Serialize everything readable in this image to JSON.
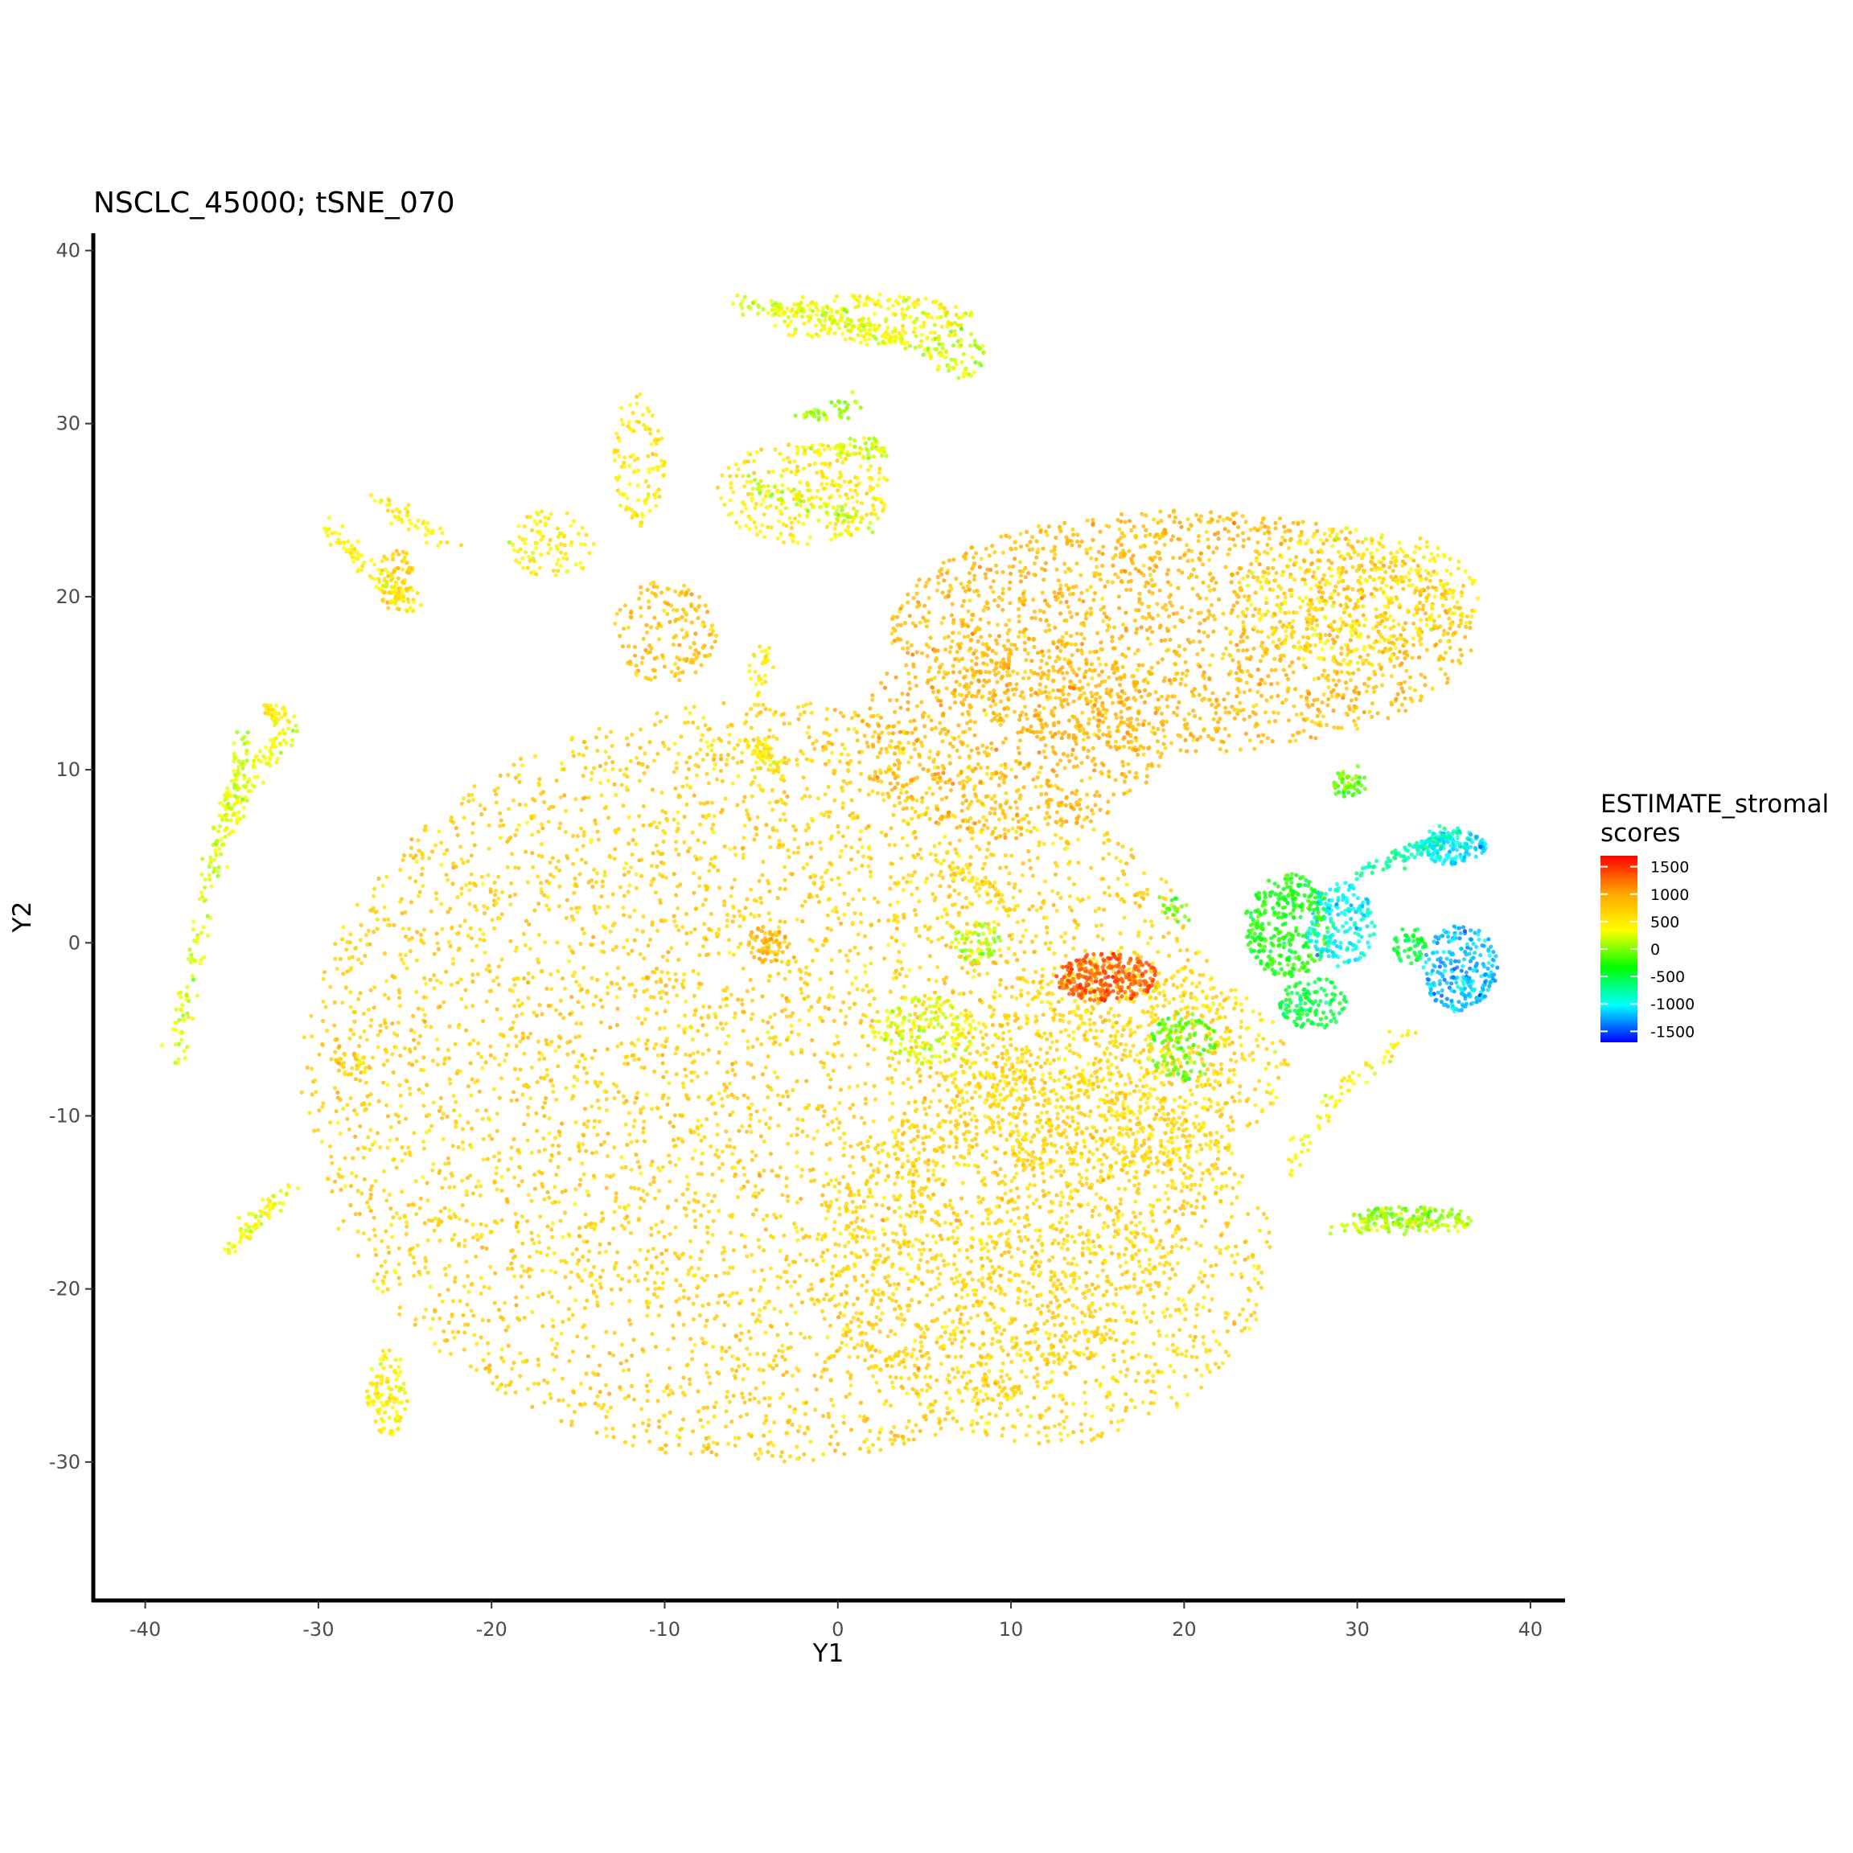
{
  "chart_data": {
    "type": "scatter",
    "title": "NSCLC_45000; tSNE_070",
    "xlabel": "Y1",
    "ylabel": "Y2",
    "xlim": [
      -43,
      42
    ],
    "ylim": [
      -38,
      41
    ],
    "xticks": [
      -40,
      -30,
      -20,
      -10,
      0,
      10,
      20,
      30,
      40
    ],
    "yticks": [
      -30,
      -20,
      -10,
      0,
      10,
      20,
      30,
      40
    ],
    "grid": false,
    "color_variable": "ESTIMATE_stromal scores",
    "legend": {
      "title_lines": [
        "ESTIMATE_stromal",
        "scores"
      ],
      "position": "right",
      "scale": [
        "#0000FF",
        "#00FFFF",
        "#00FF00",
        "#FFFF00",
        "#FFA500",
        "#FF0000"
      ],
      "range": [
        -1700,
        1700
      ],
      "ticks": [
        1500,
        1000,
        500,
        0,
        -500,
        -1000,
        -1500
      ]
    },
    "clusters": [
      {
        "cx": -4,
        "cy": -8,
        "rx": 27,
        "ry": 22,
        "n": 5200,
        "score": 700
      },
      {
        "cx": 12,
        "cy": -18,
        "rx": 13,
        "ry": 11,
        "n": 1400,
        "score": 650
      },
      {
        "cx": 16,
        "cy": -7,
        "rx": 10,
        "ry": 6,
        "n": 700,
        "score": 600
      },
      {
        "cx": 20,
        "cy": 18,
        "rx": 17,
        "ry": 7,
        "n": 1800,
        "score": 850
      },
      {
        "cx": 30,
        "cy": 20,
        "rx": 7,
        "ry": 4,
        "n": 400,
        "score": 500
      },
      {
        "cx": 10,
        "cy": 12,
        "rx": 9,
        "ry": 6,
        "n": 700,
        "score": 900
      },
      {
        "cx": 2,
        "cy": 36,
        "rx": 6,
        "ry": 1.5,
        "n": 220,
        "score": 400
      },
      {
        "cx": 7,
        "cy": 34,
        "rx": 1.5,
        "ry": 1.5,
        "n": 40,
        "score": 100
      },
      {
        "cx": -2,
        "cy": 26,
        "rx": 5,
        "ry": 3,
        "n": 260,
        "score": 500
      },
      {
        "cx": -11.5,
        "cy": 28,
        "rx": 1.5,
        "ry": 4,
        "n": 110,
        "score": 500
      },
      {
        "cx": -16.5,
        "cy": 23,
        "rx": 2.5,
        "ry": 2,
        "n": 90,
        "score": 450
      },
      {
        "cx": -25.5,
        "cy": 21,
        "rx": 1,
        "ry": 2,
        "n": 70,
        "score": 700
      },
      {
        "cx": -10,
        "cy": 18,
        "rx": 3,
        "ry": 3,
        "n": 160,
        "score": 800
      },
      {
        "cx": -4,
        "cy": 0,
        "rx": 1.2,
        "ry": 1.2,
        "n": 60,
        "score": 900
      },
      {
        "cx": 15.5,
        "cy": -2,
        "rx": 3,
        "ry": 1.4,
        "n": 260,
        "score": 1350
      },
      {
        "cx": 26,
        "cy": 1,
        "rx": 2.5,
        "ry": 3,
        "n": 300,
        "score": -300
      },
      {
        "cx": 29,
        "cy": 1,
        "rx": 2,
        "ry": 2.5,
        "n": 180,
        "score": -1000
      },
      {
        "cx": 27.5,
        "cy": -3.5,
        "rx": 2,
        "ry": 1.5,
        "n": 120,
        "score": -500
      },
      {
        "cx": 35.5,
        "cy": 5.5,
        "rx": 2,
        "ry": 1,
        "n": 150,
        "score": -1100
      },
      {
        "cx": 36,
        "cy": -1.5,
        "rx": 2.2,
        "ry": 2.5,
        "n": 240,
        "score": -1200
      },
      {
        "cx": 33,
        "cy": 0,
        "rx": 1,
        "ry": 1.2,
        "n": 50,
        "score": -500
      },
      {
        "cx": 29.5,
        "cy": 9,
        "rx": 1,
        "ry": 0.6,
        "n": 30,
        "score": -200
      },
      {
        "cx": 33,
        "cy": -15.8,
        "rx": 3.5,
        "ry": 0.6,
        "n": 110,
        "score": -50
      },
      {
        "cx": -26,
        "cy": -26,
        "rx": 1.2,
        "ry": 2.5,
        "n": 110,
        "score": 450
      },
      {
        "cx": -28,
        "cy": -7,
        "rx": 1,
        "ry": 0.7,
        "n": 30,
        "score": 650
      },
      {
        "cx": 5,
        "cy": -5,
        "rx": 3,
        "ry": 2,
        "n": 160,
        "score": 250
      },
      {
        "cx": 20,
        "cy": -6,
        "rx": 2,
        "ry": 2,
        "n": 110,
        "score": -100
      },
      {
        "cx": 8,
        "cy": 0,
        "rx": 1.5,
        "ry": 1.2,
        "n": 60,
        "score": 100
      }
    ],
    "strands": [
      {
        "x": [
          -38.3,
          -37,
          -35.5,
          -34.2
        ],
        "y": [
          -7,
          0,
          7,
          12
        ],
        "n": 170,
        "score": 250
      },
      {
        "x": [
          -35.5,
          -33.5,
          -31.5
        ],
        "y": [
          6,
          10,
          12.5
        ],
        "n": 90,
        "score": 300
      },
      {
        "x": [
          -33,
          -32
        ],
        "y": [
          13.5,
          13
        ],
        "n": 40,
        "score": 500
      },
      {
        "x": [
          -35.5,
          -31.5
        ],
        "y": [
          -18,
          -14
        ],
        "n": 70,
        "score": 350
      },
      {
        "x": [
          -29.5,
          -26.5,
          -24.5
        ],
        "y": [
          24,
          21,
          19.5
        ],
        "n": 90,
        "score": 450
      },
      {
        "x": [
          -26.5,
          -22.5
        ],
        "y": [
          25.5,
          23
        ],
        "n": 45,
        "score": 450
      },
      {
        "x": [
          -6,
          0.5,
          7.5
        ],
        "y": [
          37,
          36,
          33
        ],
        "n": 160,
        "score": 250
      },
      {
        "x": [
          -5,
          2
        ],
        "y": [
          26.5,
          24
        ],
        "n": 70,
        "score": 200
      },
      {
        "x": [
          -1,
          3
        ],
        "y": [
          28.5,
          28.5
        ],
        "n": 60,
        "score": 250
      },
      {
        "x": [
          -2,
          1
        ],
        "y": [
          30.5,
          31
        ],
        "n": 40,
        "score": 100
      },
      {
        "x": [
          -5,
          -3
        ],
        "y": [
          12,
          9.5
        ],
        "n": 30,
        "score": 500
      },
      {
        "x": [
          -4.5,
          -4.5
        ],
        "y": [
          17,
          14.5
        ],
        "n": 30,
        "score": 450
      },
      {
        "x": [
          -5.5,
          -3.5
        ],
        "y": [
          11.5,
          10.5
        ],
        "n": 30,
        "score": 500
      },
      {
        "x": [
          6,
          10
        ],
        "y": [
          5,
          2
        ],
        "n": 60,
        "score": 600
      },
      {
        "x": [
          30,
          36
        ],
        "y": [
          4,
          6.5
        ],
        "n": 80,
        "score": -800
      },
      {
        "x": [
          28.5,
          30
        ],
        "y": [
          9.5,
          9.5
        ],
        "n": 25,
        "score": 0
      },
      {
        "x": [
          29,
          36.5
        ],
        "y": [
          -16.5,
          -16.2
        ],
        "n": 90,
        "score": 200
      },
      {
        "x": [
          26,
          29.5,
          33
        ],
        "y": [
          -13,
          -8,
          -5.5
        ],
        "n": 70,
        "score": 400
      },
      {
        "x": [
          19,
          20
        ],
        "y": [
          2.5,
          1.5
        ],
        "n": 20,
        "score": -100
      }
    ]
  }
}
